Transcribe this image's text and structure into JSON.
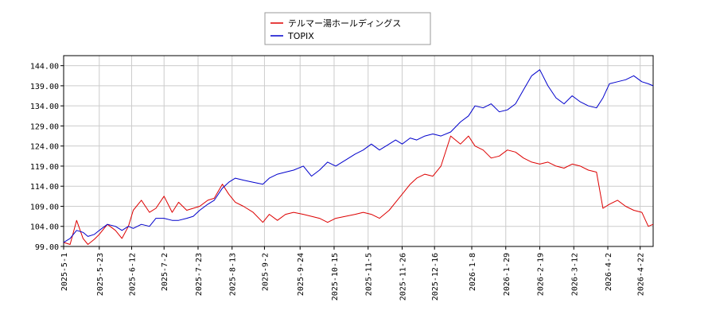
{
  "chart_data": {
    "type": "line",
    "legend": {
      "placement": "top-center"
    },
    "grid": true,
    "ylim": [
      99.0,
      146.5
    ],
    "yticks": [
      "99.00",
      "104.00",
      "109.00",
      "114.00",
      "119.00",
      "124.00",
      "129.00",
      "134.00",
      "139.00",
      "144.00"
    ],
    "ytick_values": [
      99,
      104,
      109,
      114,
      119,
      124,
      129,
      134,
      139,
      144
    ],
    "xlim": [
      "2025-05-01",
      "2026-04-30"
    ],
    "xticks": [
      "2025-5-1",
      "2025-5-23",
      "2025-6-12",
      "2025-7-2",
      "2025-7-23",
      "2025-8-13",
      "2025-9-2",
      "2025-9-24",
      "2025-10-15",
      "2025-11-5",
      "2025-11-26",
      "2025-12-16",
      "2026-1-8",
      "2026-1-29",
      "2026-2-19",
      "2026-3-12",
      "2026-4-2",
      "2026-4-22"
    ],
    "series": [
      {
        "name": "テルマー湯ホールディングス",
        "color": "#dd0000",
        "x": [
          "2025-05-01",
          "2025-05-05",
          "2025-05-09",
          "2025-05-13",
          "2025-05-16",
          "2025-05-20",
          "2025-05-23",
          "2025-05-28",
          "2025-06-02",
          "2025-06-06",
          "2025-06-10",
          "2025-06-13",
          "2025-06-18",
          "2025-06-23",
          "2025-06-27",
          "2025-07-02",
          "2025-07-07",
          "2025-07-11",
          "2025-07-16",
          "2025-07-20",
          "2025-07-24",
          "2025-07-29",
          "2025-08-02",
          "2025-08-07",
          "2025-08-11",
          "2025-08-15",
          "2025-08-20",
          "2025-08-26",
          "2025-09-01",
          "2025-09-05",
          "2025-09-10",
          "2025-09-15",
          "2025-09-20",
          "2025-09-26",
          "2025-10-01",
          "2025-10-06",
          "2025-10-11",
          "2025-10-16",
          "2025-10-22",
          "2025-10-28",
          "2025-11-02",
          "2025-11-07",
          "2025-11-12",
          "2025-11-18",
          "2025-11-22",
          "2025-11-26",
          "2025-12-01",
          "2025-12-05",
          "2025-12-10",
          "2025-12-15",
          "2025-12-20",
          "2025-12-26",
          "2026-01-01",
          "2026-01-06",
          "2026-01-10",
          "2026-01-15",
          "2026-01-20",
          "2026-01-25",
          "2026-01-30",
          "2026-02-04",
          "2026-02-09",
          "2026-02-14",
          "2026-02-19",
          "2026-02-24",
          "2026-03-01",
          "2026-03-06",
          "2026-03-11",
          "2026-03-16",
          "2026-03-21",
          "2026-03-26",
          "2026-03-30",
          "2026-04-03",
          "2026-04-08",
          "2026-04-13",
          "2026-04-18",
          "2026-04-23",
          "2026-04-27",
          "2026-04-30"
        ],
        "values": [
          100.0,
          99.5,
          105.5,
          101.0,
          99.5,
          100.8,
          102.0,
          104.5,
          103.0,
          101.0,
          104.0,
          108.0,
          110.5,
          107.5,
          108.5,
          111.5,
          107.5,
          110.0,
          108.0,
          108.5,
          109.0,
          110.5,
          111.0,
          114.5,
          112.0,
          110.0,
          109.0,
          107.5,
          105.0,
          107.0,
          105.5,
          107.0,
          107.5,
          107.0,
          106.5,
          106.0,
          105.0,
          106.0,
          106.5,
          107.0,
          107.5,
          107.0,
          106.0,
          108.0,
          110.0,
          112.0,
          114.5,
          116.0,
          117.0,
          116.5,
          119.0,
          126.5,
          124.5,
          126.5,
          124.0,
          123.0,
          121.0,
          121.5,
          123.0,
          122.5,
          121.0,
          120.0,
          119.5,
          120.0,
          119.0,
          118.5,
          119.5,
          119.0,
          118.0,
          117.5,
          108.5,
          109.5,
          110.5,
          109.0,
          108.0,
          107.5,
          104.0,
          104.5
        ]
      },
      {
        "name": "TOPIX",
        "color": "#0000cc",
        "x": [
          "2025-05-01",
          "2025-05-05",
          "2025-05-09",
          "2025-05-13",
          "2025-05-16",
          "2025-05-20",
          "2025-05-23",
          "2025-05-28",
          "2025-06-02",
          "2025-06-06",
          "2025-06-10",
          "2025-06-13",
          "2025-06-18",
          "2025-06-23",
          "2025-06-27",
          "2025-07-02",
          "2025-07-07",
          "2025-07-11",
          "2025-07-16",
          "2025-07-20",
          "2025-07-24",
          "2025-07-29",
          "2025-08-02",
          "2025-08-07",
          "2025-08-11",
          "2025-08-15",
          "2025-08-20",
          "2025-08-26",
          "2025-09-01",
          "2025-09-05",
          "2025-09-10",
          "2025-09-15",
          "2025-09-20",
          "2025-09-26",
          "2025-10-01",
          "2025-10-06",
          "2025-10-11",
          "2025-10-16",
          "2025-10-22",
          "2025-10-28",
          "2025-11-02",
          "2025-11-07",
          "2025-11-12",
          "2025-11-18",
          "2025-11-22",
          "2025-11-26",
          "2025-12-01",
          "2025-12-05",
          "2025-12-10",
          "2025-12-15",
          "2025-12-20",
          "2025-12-26",
          "2026-01-01",
          "2026-01-06",
          "2026-01-10",
          "2026-01-15",
          "2026-01-20",
          "2026-01-25",
          "2026-01-30",
          "2026-02-04",
          "2026-02-09",
          "2026-02-14",
          "2026-02-19",
          "2026-02-24",
          "2026-03-01",
          "2026-03-06",
          "2026-03-11",
          "2026-03-16",
          "2026-03-21",
          "2026-03-26",
          "2026-03-30",
          "2026-04-03",
          "2026-04-08",
          "2026-04-13",
          "2026-04-18",
          "2026-04-23",
          "2026-04-27",
          "2026-04-30"
        ],
        "values": [
          100.0,
          101.0,
          103.0,
          102.5,
          101.5,
          102.0,
          103.0,
          104.5,
          104.0,
          103.0,
          104.0,
          103.5,
          104.5,
          104.0,
          106.0,
          106.0,
          105.5,
          105.5,
          106.0,
          106.5,
          108.0,
          109.5,
          110.5,
          113.5,
          115.0,
          116.0,
          115.5,
          115.0,
          114.5,
          116.0,
          117.0,
          117.5,
          118.0,
          119.0,
          116.5,
          118.0,
          120.0,
          119.0,
          120.5,
          122.0,
          123.0,
          124.5,
          123.0,
          124.5,
          125.5,
          124.5,
          126.0,
          125.5,
          126.5,
          127.0,
          126.5,
          127.5,
          130.0,
          131.5,
          134.0,
          133.5,
          134.5,
          132.5,
          133.0,
          134.5,
          138.0,
          141.5,
          143.0,
          139.0,
          136.0,
          134.5,
          136.5,
          135.0,
          134.0,
          133.5,
          136.0,
          139.5,
          140.0,
          140.5,
          141.5,
          140.0,
          139.5,
          139.0
        ]
      }
    ]
  }
}
